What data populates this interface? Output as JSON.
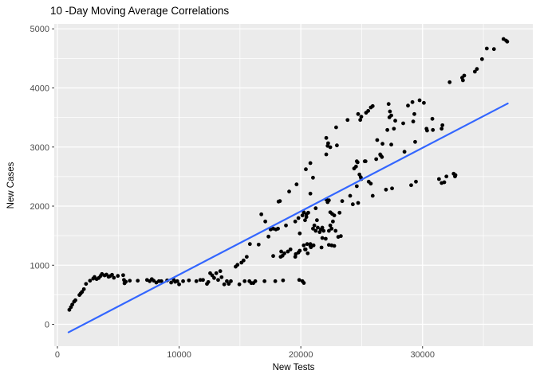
{
  "title": "10 -Day Moving Average Correlations",
  "chart_data": {
    "type": "scatter",
    "title": "10 -Day Moving Average Correlations",
    "xlabel": "New Tests",
    "ylabel": "New Cases",
    "x_ticks": [
      0,
      10000,
      20000,
      30000
    ],
    "x_minor": [
      5000,
      15000,
      25000,
      35000
    ],
    "y_ticks": [
      0,
      1000,
      2000,
      3000,
      4000,
      5000
    ],
    "y_minor": [
      500,
      1500,
      2500,
      3500,
      4500
    ],
    "xlim": [
      -260,
      39060
    ],
    "ylim": [
      -370,
      5084
    ],
    "grid": true,
    "legend": "none",
    "colors": {
      "panel_bg": "#EBEBEB",
      "grid": "#FFFFFF",
      "point": "#000000",
      "trend": "#3366FF",
      "tick_label": "#4D4D4D",
      "tick_mark": "#333333"
    },
    "trend_line": {
      "x1": 915,
      "y1": -135,
      "x2": 37000,
      "y2": 3737
    },
    "points": [
      [
        980,
        245
      ],
      [
        1110,
        290
      ],
      [
        1220,
        334
      ],
      [
        1370,
        384
      ],
      [
        1480,
        407
      ],
      [
        1810,
        496
      ],
      [
        1915,
        523
      ],
      [
        2025,
        549
      ],
      [
        2176,
        595
      ],
      [
        2352,
        684
      ],
      [
        2680,
        738
      ],
      [
        2941,
        774
      ],
      [
        3050,
        801
      ],
      [
        3223,
        765
      ],
      [
        3399,
        784
      ],
      [
        3550,
        819
      ],
      [
        3660,
        851
      ],
      [
        3877,
        828
      ],
      [
        4030,
        841
      ],
      [
        4205,
        805
      ],
      [
        4314,
        815
      ],
      [
        4490,
        838
      ],
      [
        4640,
        788
      ],
      [
        4967,
        819
      ],
      [
        5404,
        832
      ],
      [
        5470,
        751
      ],
      [
        5513,
        694
      ],
      [
        5620,
        720
      ],
      [
        5948,
        738
      ],
      [
        6601,
        738
      ],
      [
        7365,
        751
      ],
      [
        7582,
        730
      ],
      [
        7756,
        765
      ],
      [
        7909,
        738
      ],
      [
        8125,
        707
      ],
      [
        8345,
        730
      ],
      [
        8543,
        730
      ],
      [
        9020,
        743
      ],
      [
        9346,
        707
      ],
      [
        9563,
        751
      ],
      [
        9673,
        720
      ],
      [
        9850,
        730
      ],
      [
        10000,
        676
      ],
      [
        10327,
        730
      ],
      [
        10804,
        743
      ],
      [
        11417,
        730
      ],
      [
        11744,
        751
      ],
      [
        11962,
        751
      ],
      [
        12288,
        684
      ],
      [
        12399,
        716
      ],
      [
        13206,
        751
      ],
      [
        13707,
        676
      ],
      [
        13925,
        730
      ],
      [
        14078,
        684
      ],
      [
        14253,
        730
      ],
      [
        14950,
        676
      ],
      [
        15383,
        730
      ],
      [
        15775,
        730
      ],
      [
        15931,
        698
      ],
      [
        16101,
        698
      ],
      [
        16258,
        730
      ],
      [
        17017,
        730
      ],
      [
        17900,
        730
      ],
      [
        18540,
        743
      ],
      [
        19869,
        751
      ],
      [
        20131,
        730
      ],
      [
        20250,
        700
      ],
      [
        12550,
        865
      ],
      [
        12725,
        828
      ],
      [
        12877,
        784
      ],
      [
        13053,
        865
      ],
      [
        13380,
        900
      ],
      [
        13489,
        797
      ],
      [
        14645,
        976
      ],
      [
        14797,
        1007
      ],
      [
        15121,
        1044
      ],
      [
        15295,
        1080
      ],
      [
        15556,
        1142
      ],
      [
        17730,
        1156
      ],
      [
        18343,
        1142
      ],
      [
        18497,
        1161
      ],
      [
        19542,
        1142
      ],
      [
        15817,
        1358
      ],
      [
        16536,
        1349
      ],
      [
        17343,
        1484
      ],
      [
        17517,
        1605
      ],
      [
        17735,
        1619
      ],
      [
        17953,
        1605
      ],
      [
        18126,
        1619
      ],
      [
        18388,
        1232
      ],
      [
        18650,
        1201
      ],
      [
        18779,
        1673
      ],
      [
        18937,
        1232
      ],
      [
        19150,
        1268
      ],
      [
        19586,
        1188
      ],
      [
        19804,
        1215
      ],
      [
        19913,
        1246
      ],
      [
        20348,
        1268
      ],
      [
        20566,
        1201
      ],
      [
        20784,
        1358
      ],
      [
        20828,
        1304
      ],
      [
        16755,
        1861
      ],
      [
        17082,
        1740
      ],
      [
        18170,
        2077
      ],
      [
        18281,
        2085
      ],
      [
        19041,
        2247
      ],
      [
        19651,
        2368
      ],
      [
        19542,
        1740
      ],
      [
        19804,
        1798
      ],
      [
        19913,
        1538
      ],
      [
        20239,
        1336
      ],
      [
        20521,
        1358
      ],
      [
        20784,
        1327
      ],
      [
        21045,
        1336
      ],
      [
        21765,
        1461
      ],
      [
        22045,
        1448
      ],
      [
        22306,
        1344
      ],
      [
        22529,
        1336
      ],
      [
        22747,
        1327
      ],
      [
        23074,
        1479
      ],
      [
        23290,
        1493
      ],
      [
        21700,
        1300
      ],
      [
        20392,
        1268
      ],
      [
        20241,
        1896
      ],
      [
        20457,
        1861
      ],
      [
        20610,
        1888
      ],
      [
        20131,
        1843
      ],
      [
        20457,
        1816
      ],
      [
        21222,
        1964
      ],
      [
        21325,
        1762
      ],
      [
        21112,
        1673
      ],
      [
        21000,
        1619
      ],
      [
        21222,
        1582
      ],
      [
        21392,
        1636
      ],
      [
        21545,
        1560
      ],
      [
        21654,
        1605
      ],
      [
        21765,
        1636
      ],
      [
        21872,
        1582
      ],
      [
        22420,
        1896
      ],
      [
        22572,
        1869
      ],
      [
        22747,
        1843
      ],
      [
        22637,
        1740
      ],
      [
        22420,
        1673
      ],
      [
        22529,
        1619
      ],
      [
        22306,
        1582
      ],
      [
        22856,
        1582
      ],
      [
        23182,
        1888
      ],
      [
        20348,
        1762
      ],
      [
        20784,
        2212
      ],
      [
        21000,
        2481
      ],
      [
        20784,
        2728
      ],
      [
        20414,
        2624
      ],
      [
        22090,
        2112
      ],
      [
        22306,
        2099
      ],
      [
        22200,
        2067
      ],
      [
        23399,
        2085
      ],
      [
        24053,
        2175
      ],
      [
        24271,
        2031
      ],
      [
        24598,
        2337
      ],
      [
        24380,
        2637
      ],
      [
        24598,
        2759
      ],
      [
        25252,
        2759
      ],
      [
        24925,
        2489
      ],
      [
        25578,
        2414
      ],
      [
        25905,
        2175
      ],
      [
        26193,
        2795
      ],
      [
        26520,
        2875
      ],
      [
        24664,
        2741
      ],
      [
        25317,
        2759
      ],
      [
        24533,
        2669
      ],
      [
        26555,
        2862
      ],
      [
        26664,
        2831
      ],
      [
        28516,
        2920
      ],
      [
        24817,
        2535
      ],
      [
        24969,
        2458
      ],
      [
        25748,
        2381
      ],
      [
        26997,
        2279
      ],
      [
        27496,
        2300
      ],
      [
        29065,
        2354
      ],
      [
        29458,
        2414
      ],
      [
        24707,
        2054
      ],
      [
        22200,
        3020
      ],
      [
        22420,
        2997
      ],
      [
        22090,
        2875
      ],
      [
        22965,
        3028
      ],
      [
        22245,
        3064
      ],
      [
        22900,
        3333
      ],
      [
        23840,
        3458
      ],
      [
        22090,
        3154
      ],
      [
        24707,
        3558
      ],
      [
        24969,
        3513
      ],
      [
        24882,
        3459
      ],
      [
        25361,
        3580
      ],
      [
        25537,
        3612
      ],
      [
        25753,
        3670
      ],
      [
        25905,
        3693
      ],
      [
        27213,
        3728
      ],
      [
        27322,
        3602
      ],
      [
        27431,
        3534
      ],
      [
        27278,
        3503
      ],
      [
        27758,
        3445
      ],
      [
        28412,
        3401
      ],
      [
        28804,
        3701
      ],
      [
        29170,
        3760
      ],
      [
        29758,
        3791
      ],
      [
        30111,
        3747
      ],
      [
        29327,
        3558
      ],
      [
        29235,
        3432
      ],
      [
        30327,
        3310
      ],
      [
        30807,
        3477
      ],
      [
        30850,
        3289
      ],
      [
        31634,
        3369
      ],
      [
        31569,
        3310
      ],
      [
        27648,
        3310
      ],
      [
        27108,
        3289
      ],
      [
        30373,
        3279
      ],
      [
        26275,
        3118
      ],
      [
        26712,
        3055
      ],
      [
        27431,
        3041
      ],
      [
        29392,
        3087
      ],
      [
        31351,
        2458
      ],
      [
        31569,
        2391
      ],
      [
        31786,
        2404
      ],
      [
        31962,
        2502
      ],
      [
        32555,
        2548
      ],
      [
        32705,
        2525
      ],
      [
        32666,
        2502
      ],
      [
        32228,
        4097
      ],
      [
        33254,
        4173
      ],
      [
        33424,
        4209
      ],
      [
        33319,
        4128
      ],
      [
        34299,
        4276
      ],
      [
        34469,
        4321
      ],
      [
        34888,
        4487
      ],
      [
        35280,
        4667
      ],
      [
        35868,
        4657
      ],
      [
        36653,
        4828
      ],
      [
        36869,
        4801
      ],
      [
        36956,
        4784
      ]
    ]
  }
}
